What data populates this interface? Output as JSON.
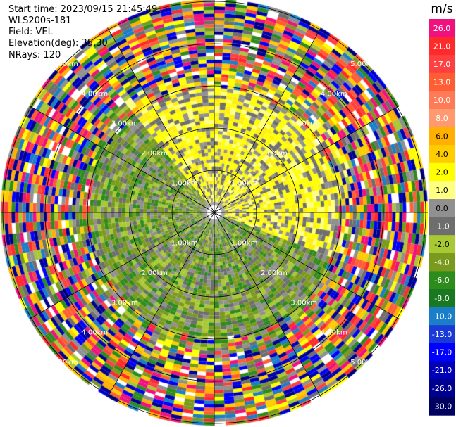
{
  "info": {
    "start_time": "Start time: 2023/09/15 21:45:49",
    "instrument": "WLS200s-181",
    "field": "Field: VEL",
    "elevation": "Elevation(deg): 35.30",
    "nrays": "NRays: 120"
  },
  "chart_data": {
    "type": "heatmap",
    "projection": "polar-ppi",
    "field": "VEL",
    "units": "m/s",
    "range_rings_km": [
      1,
      2,
      3,
      4,
      5
    ],
    "ring_labels": [
      "1.00km",
      "2.00km",
      "3.00km",
      "4.00km",
      "5.00km"
    ],
    "spokes_deg": [
      0,
      30,
      60,
      90,
      120,
      150,
      180,
      210,
      240,
      270,
      300,
      330
    ],
    "colorbar": {
      "unit_label": "m/s",
      "tick_labels": [
        "26.0",
        "21.0",
        "17.0",
        "13.0",
        "10.0",
        "8.0",
        "6.0",
        "4.0",
        "2.0",
        "1.0",
        "0.0",
        "-1.0",
        "-2.0",
        "-4.0",
        "-6.0",
        "-8.0",
        "-10.0",
        "-13.0",
        "-17.0",
        "-21.0",
        "-26.0",
        "-30.0"
      ],
      "colors": [
        "#f0117f",
        "#ff2a2a",
        "#ff4040",
        "#ff5e34",
        "#ff7a56",
        "#ff9a70",
        "#ffb000",
        "#ffcc00",
        "#ffff00",
        "#ffff80",
        "#909090",
        "#6e6e6e",
        "#a8c834",
        "#7a9a1e",
        "#2e8c1c",
        "#1a7820",
        "#1a7ec8",
        "#1a3ad8",
        "#0000ff",
        "#0000b8",
        "#000090",
        "#000060"
      ]
    },
    "pattern": {
      "inner_region_km": 2.9,
      "inner_north_east_colors": [
        "#ffff00",
        "#ffff00",
        "#ffee10",
        "#909090",
        "#6e6e6e",
        "#ffff80"
      ],
      "inner_south_west_colors": [
        "#7a9a1e",
        "#a8c834",
        "#7a9a1e",
        "#909090",
        "#6e6e6e",
        "#2e8c1c"
      ],
      "outer_noise_colors": [
        "#f0117f",
        "#ff2a2a",
        "#ffff00",
        "#0000ff",
        "#000090",
        "#1a7ec8",
        "#909090",
        "#ffb000",
        "#2e8c1c",
        "#ff5e34",
        "#7a9a1e",
        "#ffffff",
        "#a8c834",
        "#ffcc00",
        "#0000b8",
        "#ff4040",
        "#6e6e6e"
      ]
    }
  }
}
